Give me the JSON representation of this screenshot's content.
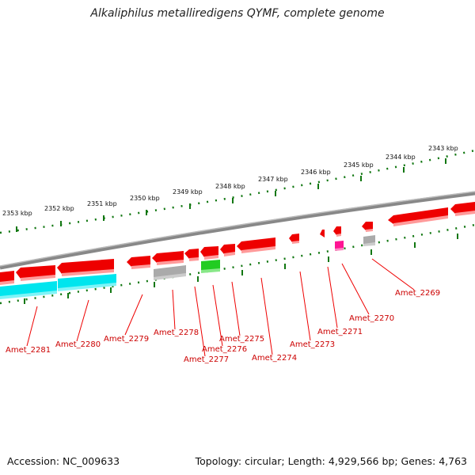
{
  "title": "Alkaliphilus metalliredigens QYMF, complete genome",
  "footer": {
    "accession": "Accession: NC_009633",
    "topology": "Topology: circular; Length: 4,929,566 bp; Genes: 4,763"
  },
  "kbp_labels": [
    "2353 kbp",
    "2352 kbp",
    "2351 kbp",
    "2350 kbp",
    "2349 kbp",
    "2348 kbp",
    "2347 kbp",
    "2346 kbp",
    "2345 kbp",
    "2344 kbp",
    "2343 kbp"
  ],
  "gene_labels": [
    "Amet_2281",
    "Amet_2280",
    "Amet_2279",
    "Amet_2278",
    "Amet_2277",
    "Amet_2276",
    "Amet_2275",
    "Amet_2274",
    "Amet_2273",
    "Amet_2271",
    "Amet_2270",
    "Amet_2269"
  ],
  "colors": {
    "gene_red": "#ee0000",
    "gene_cyan": "#00e5ee",
    "gene_gray": "#aaaaaa",
    "gene_green": "#22cc22",
    "gene_magenta": "#ff1493",
    "backbone": "#888888",
    "tick_green": "#117711",
    "label_red": "#cc0000"
  }
}
